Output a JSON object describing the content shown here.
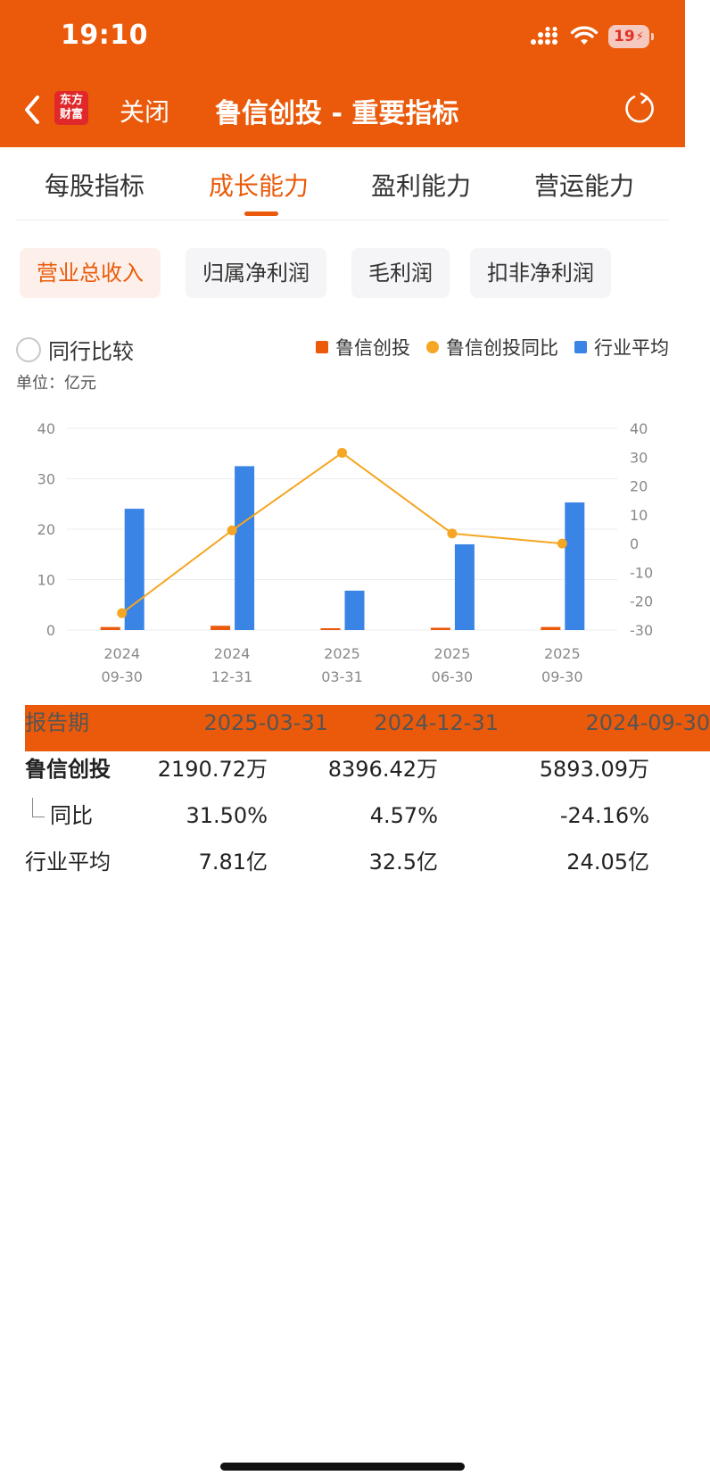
{
  "status_bar": {
    "time": "19:10",
    "battery": "19"
  },
  "nav": {
    "logo_line1": "东方",
    "logo_line2": "财富",
    "close": "关闭",
    "title": "鲁信创投 - 重要指标"
  },
  "tabs": [
    {
      "label": "每股指标"
    },
    {
      "label": "成长能力"
    },
    {
      "label": "盈利能力"
    },
    {
      "label": "营运能力"
    }
  ],
  "active_tab": 1,
  "subtabs": [
    {
      "label": "营业总收入"
    },
    {
      "label": "归属净利润"
    },
    {
      "label": "毛利润"
    },
    {
      "label": "扣非净利润"
    }
  ],
  "compare_label": "同行比较",
  "legend": {
    "company": "鲁信创投",
    "yoy": "鲁信创投同比",
    "industry": "行业平均"
  },
  "unit_label": "单位：亿元",
  "colors": {
    "brand": "#EA5A0A",
    "company_bar": "#EA5A0A",
    "yoy_line": "#F5A623",
    "industry_bar": "#3A84E6"
  },
  "chart_data": {
    "type": "bar",
    "categories": [
      {
        "year": "2024",
        "date": "09-30"
      },
      {
        "year": "2024",
        "date": "12-31"
      },
      {
        "year": "2025",
        "date": "03-31"
      },
      {
        "year": "2025",
        "date": "06-30"
      },
      {
        "year": "2025",
        "date": "09-30"
      }
    ],
    "series": [
      {
        "name": "鲁信创投",
        "type": "bar",
        "axis": "left",
        "values": [
          0.59,
          0.84,
          0.22,
          0.45,
          0.6
        ]
      },
      {
        "name": "行业平均",
        "type": "bar",
        "axis": "left",
        "values": [
          24.05,
          32.5,
          7.81,
          17.0,
          25.3
        ]
      },
      {
        "name": "鲁信创投同比",
        "type": "line",
        "axis": "right",
        "values": [
          -24.16,
          4.57,
          31.5,
          3.5,
          0
        ]
      }
    ],
    "y_left": {
      "range": [
        0,
        40
      ],
      "ticks": [
        "40",
        "30",
        "20",
        "10",
        "0"
      ]
    },
    "y_right": {
      "range": [
        -30,
        40
      ],
      "ticks": [
        "40",
        "30",
        "20",
        "10",
        "0",
        "-10",
        "-20",
        "-30"
      ]
    },
    "grid": true
  },
  "table": {
    "header": [
      "报告期",
      "2025-03-31",
      "2024-12-31",
      "2024-09-30"
    ],
    "company": [
      "鲁信创投",
      "2190.72万",
      "8396.42万",
      "5893.09万"
    ],
    "yoy": [
      "同比",
      "31.50%",
      "4.57%",
      "-24.16%"
    ],
    "industry": [
      "行业平均",
      "7.81亿",
      "32.5亿",
      "24.05亿"
    ]
  }
}
